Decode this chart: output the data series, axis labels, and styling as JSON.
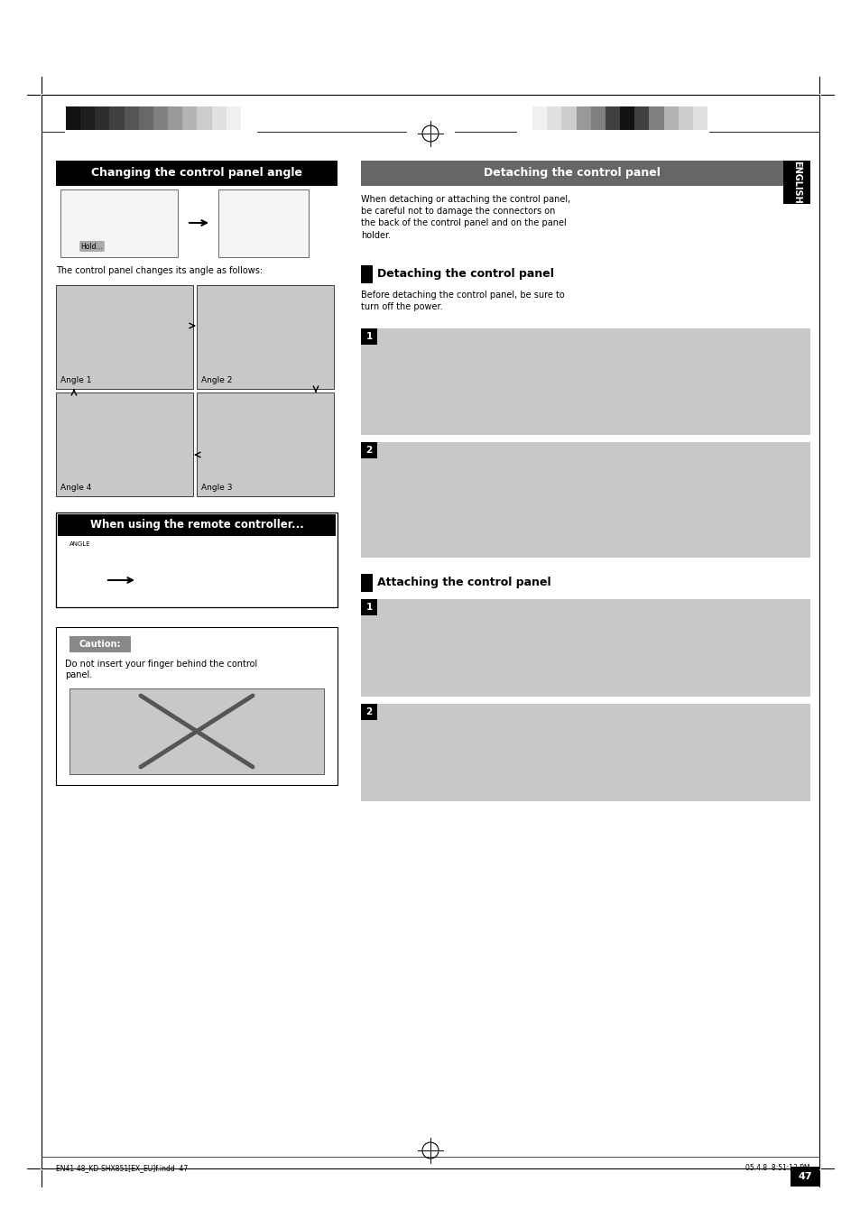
{
  "bg_color": "#ffffff",
  "page_width": 9.54,
  "page_height": 13.51,
  "left_title": "Changing the control panel angle",
  "right_title": "Detaching the control panel",
  "left_title_bg": "#000000",
  "right_title_bg": "#444444",
  "left_title_color": "#ffffff",
  "right_title_color": "#ffffff",
  "english_tab_color": "#000000",
  "english_tab_text": "ENGLISH",
  "section_detach": "Detaching the control panel",
  "section_attach": "Attaching the control panel",
  "body_text_right": "When detaching or attaching the control panel,\nbe careful not to damage the connectors on\nthe back of the control panel and on the panel\nholder.",
  "detach_sub": "Before detaching the control panel, be sure to\nturn off the power.",
  "left_body1": "The control panel changes its angle as follows:",
  "angle1": "Angle 1",
  "angle2": "Angle 2",
  "angle3": "Angle 3",
  "angle4": "Angle 4",
  "remote_title": "When using the remote controller...",
  "remote_title_bg": "#000000",
  "remote_title_color": "#ffffff",
  "caution_label": "Caution:",
  "caution_text": "Do not insert your finger behind the control\npanel.",
  "diagram_bg": "#c8c8c8",
  "page_number": "47",
  "footer_left": "EN41-48_KD-SHX851[EX_EU]f.indd  47",
  "footer_right": "05.4.8  8:51:13 PM",
  "num_label_bg": "#000000",
  "num_label_color": "#ffffff",
  "bar_colors_left": [
    "#111111",
    "#1e1e1e",
    "#2e2e2e",
    "#404040",
    "#555555",
    "#686868",
    "#808080",
    "#999999",
    "#b3b3b3",
    "#cccccc",
    "#e0e0e0",
    "#f0f0f0",
    "#ffffff"
  ],
  "bar_colors_right": [
    "#ffffff",
    "#f0f0f0",
    "#e0e0e0",
    "#cccccc",
    "#999999",
    "#808080",
    "#404040",
    "#111111",
    "#404040",
    "#808080",
    "#b3b3b3",
    "#cccccc",
    "#e0e0e0"
  ]
}
